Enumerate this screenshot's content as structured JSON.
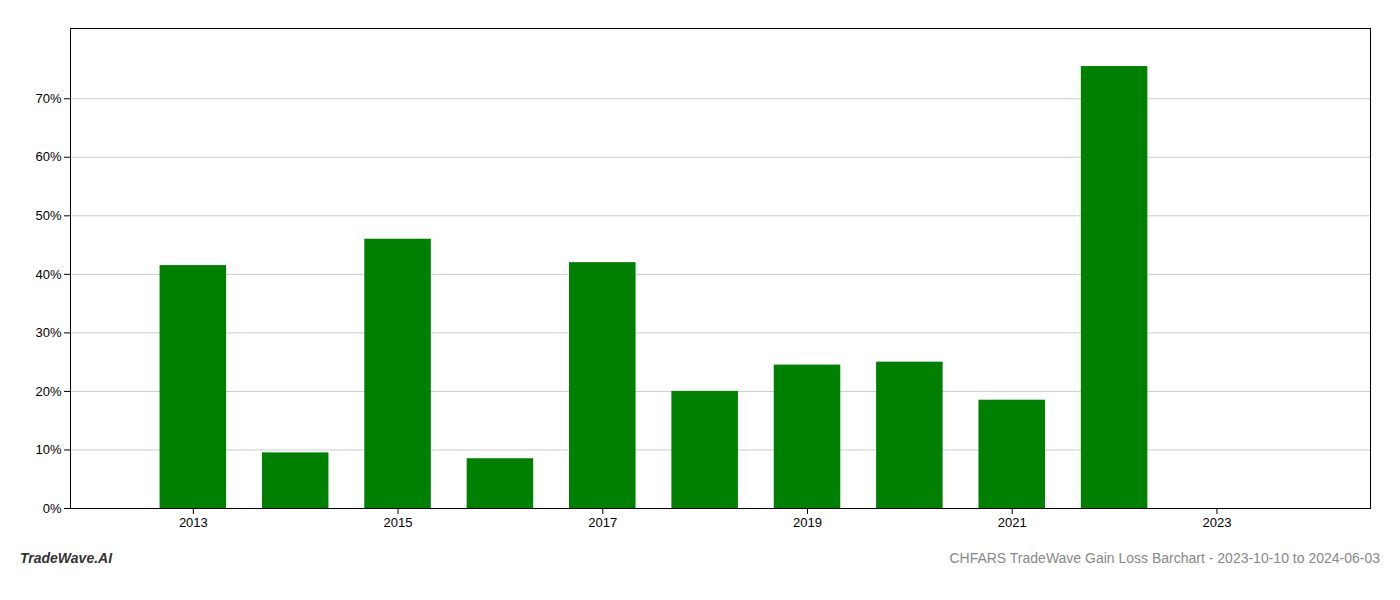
{
  "chart_data": {
    "type": "bar",
    "x": [
      2013,
      2014,
      2015,
      2016,
      2017,
      2018,
      2019,
      2020,
      2021,
      2022,
      2023
    ],
    "values": [
      0.415,
      0.095,
      0.46,
      0.085,
      0.42,
      0.2,
      0.245,
      0.25,
      0.185,
      0.755,
      0.0
    ],
    "color": "#008000",
    "xlim": [
      2011.8,
      2024.5
    ],
    "xticks": [
      2013,
      2015,
      2017,
      2019,
      2021,
      2023
    ],
    "ylim": [
      0,
      0.82
    ],
    "yticks": [
      {
        "value": 0,
        "label": "0%"
      },
      {
        "value": 0.1,
        "label": "10%"
      },
      {
        "value": 0.2,
        "label": "20%"
      },
      {
        "value": 0.3,
        "label": "30%"
      },
      {
        "value": 0.4,
        "label": "40%"
      },
      {
        "value": 0.5,
        "label": "50%"
      },
      {
        "value": 0.6,
        "label": "60%"
      },
      {
        "value": 0.7,
        "label": "70%"
      }
    ],
    "grid": true,
    "annotations": [
      "TradeWave.AI",
      "CHFARS TradeWave Gain Loss Barchart - 2023-10-10 to 2024-06-03"
    ]
  }
}
